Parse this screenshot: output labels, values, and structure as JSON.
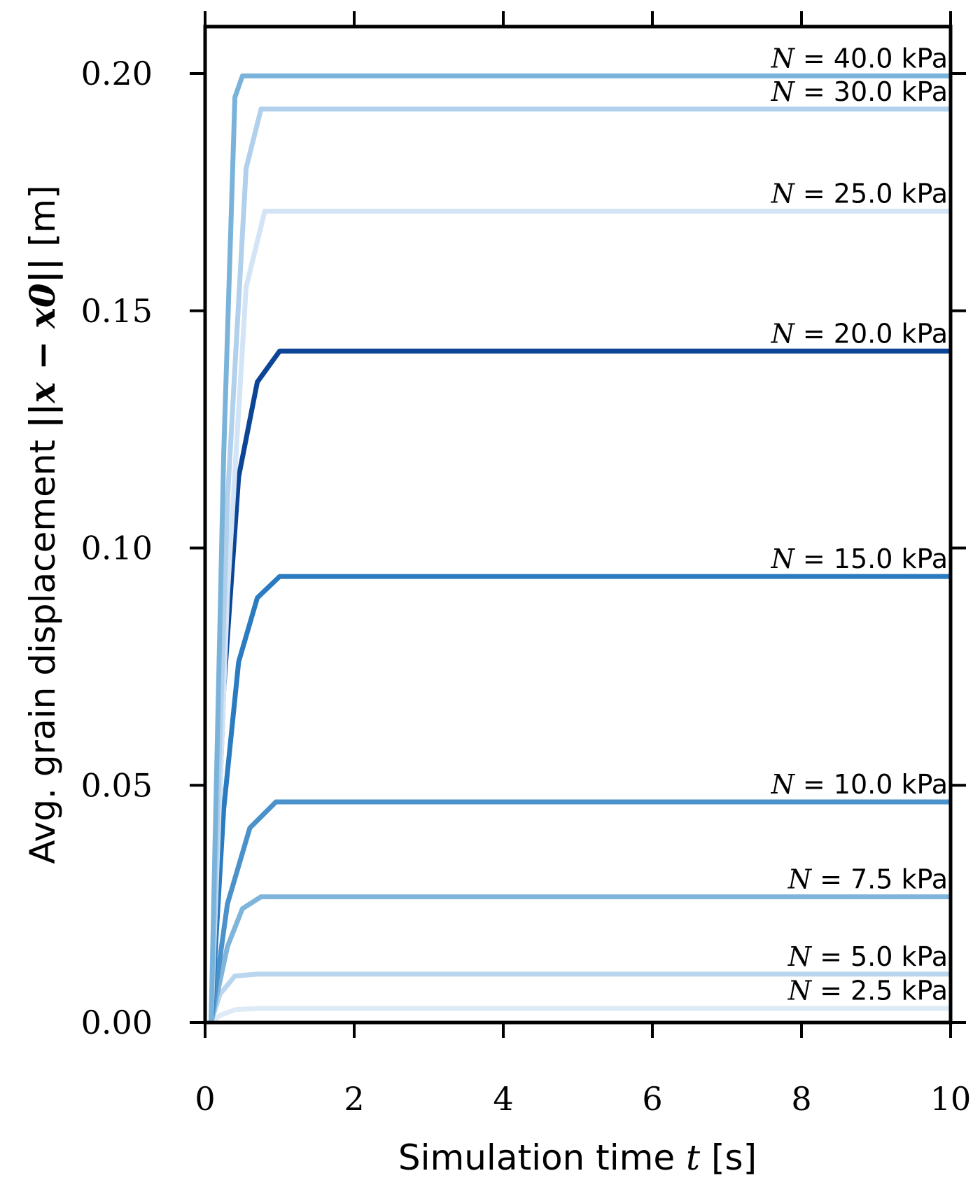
{
  "chart_data": {
    "type": "line",
    "xlabel": "Simulation time",
    "xlabel_var": "t",
    "xlabel_unit": "[s]",
    "ylabel": "Avg. grain displacement",
    "ylabel_expr": "||x − x0||",
    "ylabel_unit": "[m]",
    "xlim": [
      0,
      10
    ],
    "ylim": [
      0,
      0.21
    ],
    "xticks": [
      0,
      2,
      4,
      6,
      8,
      10
    ],
    "xtick_labels": [
      "0",
      "2",
      "4",
      "6",
      "8",
      "10"
    ],
    "yticks": [
      0.0,
      0.05,
      0.1,
      0.15,
      0.2
    ],
    "ytick_labels": [
      "0.00",
      "0.05",
      "0.10",
      "0.15",
      "0.20"
    ],
    "grid": false,
    "series": [
      {
        "name": "N = 2.5 kPa",
        "label_var": "N",
        "label_text": " = 2.5 kPa",
        "color": "#deebf7",
        "x": [
          0.08,
          0.2,
          0.4,
          0.7,
          10
        ],
        "values": [
          0,
          0.0015,
          0.0027,
          0.003,
          0.003
        ]
      },
      {
        "name": "N = 5.0 kPa",
        "label_var": "N",
        "label_text": " = 5.0 kPa",
        "color": "#b9d6ee",
        "x": [
          0.08,
          0.2,
          0.4,
          0.7,
          10
        ],
        "values": [
          0,
          0.006,
          0.0098,
          0.0102,
          0.0102
        ]
      },
      {
        "name": "N = 7.5 kPa",
        "label_var": "N",
        "label_text": " = 7.5 kPa",
        "color": "#7fb4db",
        "x": [
          0.08,
          0.3,
          0.5,
          0.75,
          10
        ],
        "values": [
          0,
          0.016,
          0.024,
          0.0265,
          0.0265
        ]
      },
      {
        "name": "N = 10.0 kPa",
        "label_var": "N",
        "label_text": " = 10.0 kPa",
        "color": "#4a92c9",
        "x": [
          0.08,
          0.3,
          0.6,
          0.95,
          10
        ],
        "values": [
          0,
          0.025,
          0.041,
          0.0465,
          0.0465
        ]
      },
      {
        "name": "N = 15.0 kPa",
        "label_var": "N",
        "label_text": " = 15.0 kPa",
        "color": "#2b7bc0",
        "x": [
          0.08,
          0.25,
          0.45,
          0.7,
          1.0,
          10
        ],
        "values": [
          0,
          0.045,
          0.076,
          0.0895,
          0.094,
          0.094
        ]
      },
      {
        "name": "N = 20.0 kPa",
        "label_var": "N",
        "label_text": " = 20.0 kPa",
        "color": "#0d4596",
        "x": [
          0.08,
          0.25,
          0.45,
          0.7,
          1.0,
          10
        ],
        "values": [
          0,
          0.07,
          0.115,
          0.135,
          0.1415,
          0.1415
        ]
      },
      {
        "name": "N = 25.0 kPa",
        "label_var": "N",
        "label_text": " = 25.0 kPa",
        "color": "#d2e4f5",
        "x": [
          0.08,
          0.3,
          0.55,
          0.8,
          10
        ],
        "values": [
          0,
          0.09,
          0.155,
          0.171,
          0.171
        ]
      },
      {
        "name": "N = 30.0 kPa",
        "label_var": "N",
        "label_text": " = 30.0 kPa",
        "color": "#b1d0eb",
        "x": [
          0.08,
          0.3,
          0.55,
          0.75,
          10
        ],
        "values": [
          0,
          0.11,
          0.18,
          0.1925,
          0.1925
        ]
      },
      {
        "name": "N = 40.0 kPa",
        "label_var": "N",
        "label_text": " = 40.0 kPa",
        "color": "#7ab3da",
        "x": [
          0.08,
          0.25,
          0.4,
          0.5,
          10
        ],
        "values": [
          0,
          0.12,
          0.195,
          0.1995,
          0.1995
        ]
      }
    ]
  }
}
